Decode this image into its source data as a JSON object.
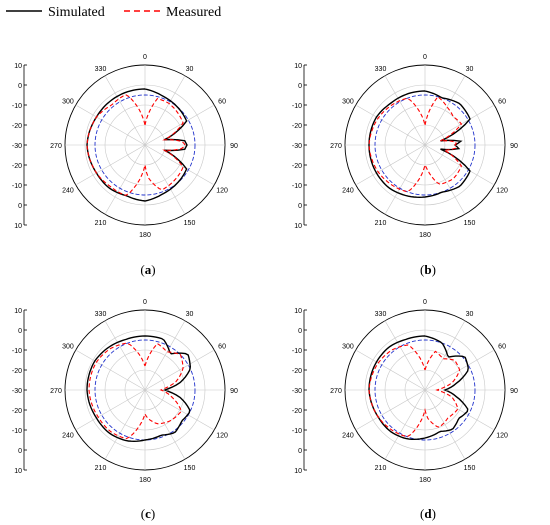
{
  "legend": {
    "simulated": "Simulated",
    "measured": "Measured",
    "colors": {
      "simulated": "#000000",
      "measured": "#ff0000",
      "reference": "#2233cc",
      "grid": "#c8c8c8"
    }
  },
  "chart_data": [
    {
      "type": "polar",
      "panel_label": "a",
      "angle_ticks": [
        "0",
        "30",
        "60",
        "90",
        "120",
        "150",
        "180",
        "210",
        "240",
        "270",
        "300",
        "330"
      ],
      "radial_ticks_top": [
        "10",
        "0",
        "-10",
        "-20",
        "-30"
      ],
      "radial_ticks_bottom": [
        "-30",
        "-20",
        "-10",
        "0",
        "10"
      ],
      "rlim": [
        -30,
        10
      ],
      "reference_circle_db": -5,
      "series": [
        {
          "name": "Simulated",
          "style": "solid",
          "angles_deg": [
            0,
            20,
            40,
            60,
            75,
            84,
            90,
            96,
            105,
            120,
            140,
            160,
            180,
            200,
            220,
            240,
            270,
            300,
            320,
            340,
            360
          ],
          "values_db": [
            -2,
            -4,
            -5,
            -6,
            -20,
            -10,
            -9,
            -10,
            -20,
            -6,
            -5,
            -4,
            -2,
            -3,
            -2,
            -2,
            -1,
            -2,
            -2,
            -2,
            -2
          ]
        },
        {
          "name": "Measured",
          "style": "dashed",
          "angles_deg": [
            0,
            15,
            30,
            45,
            60,
            75,
            85,
            90,
            95,
            105,
            120,
            140,
            160,
            175,
            180,
            200,
            220,
            240,
            270,
            300,
            320,
            340,
            360
          ],
          "values_db": [
            -20,
            -6,
            -6,
            -7,
            -8,
            -20,
            -11,
            -10,
            -11,
            -20,
            -8,
            -7,
            -6,
            -14,
            -20,
            -3,
            -3,
            -2,
            -1,
            -2,
            -4,
            -3,
            -20
          ]
        }
      ]
    },
    {
      "type": "polar",
      "panel_label": "b",
      "angle_ticks": [
        "0",
        "30",
        "60",
        "90",
        "120",
        "150",
        "180",
        "210",
        "240",
        "270",
        "300",
        "330"
      ],
      "radial_ticks_top": [
        "10",
        "0",
        "-10",
        "-20",
        "-30"
      ],
      "radial_ticks_bottom": [
        "-30",
        "-20",
        "-10",
        "0",
        "10"
      ],
      "rlim": [
        -30,
        10
      ],
      "reference_circle_db": -5,
      "series": [
        {
          "name": "Simulated",
          "style": "solid",
          "angles_deg": [
            0,
            20,
            40,
            60,
            75,
            84,
            90,
            96,
            105,
            120,
            140,
            160,
            180,
            200,
            220,
            240,
            270,
            300,
            320,
            340,
            360
          ],
          "values_db": [
            -3,
            -5,
            -3,
            -4,
            -22,
            -12,
            -15,
            -13,
            -22,
            -4,
            -3,
            -5,
            -4,
            -3,
            -2,
            -2,
            -2,
            -2,
            -3,
            -3,
            -3
          ]
        },
        {
          "name": "Measured",
          "style": "dashed",
          "angles_deg": [
            0,
            15,
            30,
            45,
            60,
            75,
            85,
            90,
            95,
            105,
            120,
            140,
            160,
            175,
            180,
            200,
            220,
            240,
            270,
            300,
            320,
            340,
            360
          ],
          "values_db": [
            -20,
            -5,
            -8,
            -10,
            -9,
            -22,
            -14,
            -15,
            -14,
            -20,
            -9,
            -8,
            -9,
            -18,
            -20,
            -5,
            -4,
            -3,
            -2,
            -3,
            -4,
            -5,
            -20
          ]
        }
      ]
    },
    {
      "type": "polar",
      "panel_label": "c",
      "angle_ticks": [
        "0",
        "30",
        "60",
        "90",
        "120",
        "150",
        "180",
        "210",
        "240",
        "270",
        "300",
        "330"
      ],
      "radial_ticks_top": [
        "10",
        "0",
        "-10",
        "-20",
        "-30"
      ],
      "radial_ticks_bottom": [
        "-30",
        "-20",
        "-10",
        "0",
        "10"
      ],
      "rlim": [
        -30,
        10
      ],
      "reference_circle_db": -5,
      "series": [
        {
          "name": "Simulated",
          "style": "solid",
          "angles_deg": [
            0,
            20,
            35,
            50,
            65,
            78,
            86,
            90,
            94,
            102,
            115,
            130,
            145,
            160,
            180,
            200,
            220,
            240,
            270,
            300,
            320,
            340,
            360
          ],
          "values_db": [
            -3,
            -3,
            -8,
            -2,
            -5,
            -12,
            -18,
            -20,
            -18,
            -12,
            -5,
            -6,
            -4,
            -6,
            -5,
            -3,
            -2,
            -2,
            -1,
            -1,
            -2,
            -3,
            -3
          ]
        },
        {
          "name": "Measured",
          "style": "dashed",
          "angles_deg": [
            0,
            15,
            30,
            45,
            60,
            75,
            85,
            90,
            95,
            105,
            120,
            140,
            160,
            175,
            180,
            200,
            220,
            240,
            270,
            300,
            320,
            340,
            360
          ],
          "values_db": [
            -18,
            -6,
            -8,
            -5,
            -8,
            -14,
            -20,
            -22,
            -20,
            -16,
            -9,
            -10,
            -12,
            -16,
            -18,
            -4,
            -3,
            -3,
            -2,
            -2,
            -3,
            -5,
            -18
          ]
        }
      ]
    },
    {
      "type": "polar",
      "panel_label": "d",
      "angle_ticks": [
        "0",
        "30",
        "60",
        "90",
        "120",
        "150",
        "180",
        "210",
        "240",
        "270",
        "300",
        "330"
      ],
      "radial_ticks_top": [
        "10",
        "0",
        "-10",
        "-20",
        "-30"
      ],
      "radial_ticks_bottom": [
        "-30",
        "-20",
        "-10",
        "0",
        "10"
      ],
      "rlim": [
        -30,
        10
      ],
      "reference_circle_db": -5,
      "series": [
        {
          "name": "Simulated",
          "style": "solid",
          "angles_deg": [
            0,
            20,
            35,
            50,
            65,
            78,
            86,
            90,
            94,
            102,
            115,
            130,
            145,
            160,
            180,
            200,
            220,
            240,
            270,
            300,
            320,
            340,
            360
          ],
          "values_db": [
            -3,
            -5,
            -10,
            -4,
            -6,
            -14,
            -18,
            -20,
            -18,
            -14,
            -6,
            -8,
            -6,
            -8,
            -6,
            -4,
            -3,
            -3,
            -2,
            -2,
            -2,
            -3,
            -3
          ]
        },
        {
          "name": "Measured",
          "style": "dashed",
          "angles_deg": [
            0,
            15,
            30,
            45,
            60,
            75,
            85,
            90,
            95,
            105,
            120,
            140,
            160,
            175,
            180,
            200,
            220,
            240,
            270,
            300,
            320,
            340,
            360
          ],
          "values_db": [
            -20,
            -10,
            -12,
            -9,
            -10,
            -16,
            -22,
            -24,
            -22,
            -16,
            -11,
            -12,
            -10,
            -16,
            -20,
            -5,
            -4,
            -3,
            -2,
            -3,
            -4,
            -6,
            -20
          ]
        }
      ]
    }
  ]
}
